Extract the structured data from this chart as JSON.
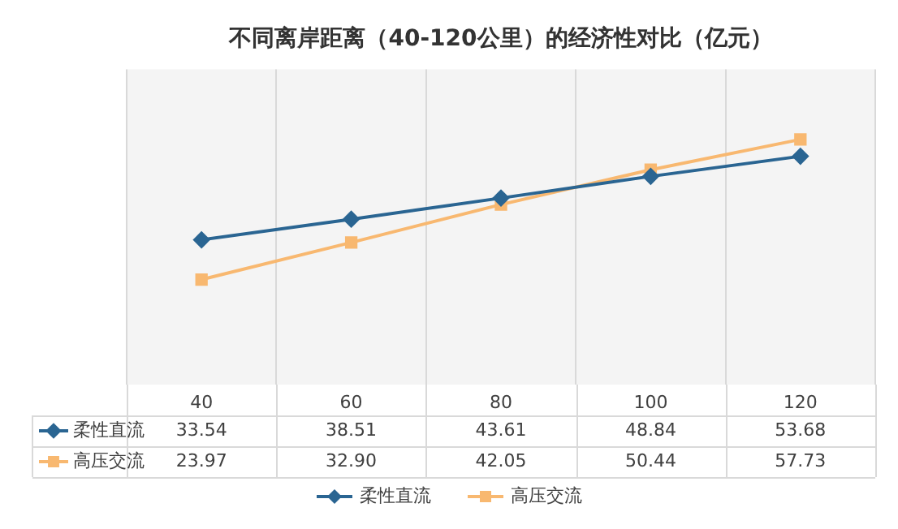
{
  "chart_data": {
    "type": "line",
    "title": "不同离岸距离（40-120公里）的经济性对比（亿元）",
    "categories": [
      "40",
      "60",
      "80",
      "100",
      "120"
    ],
    "series": [
      {
        "name": "柔性直流",
        "color": "#2a6592",
        "marker": "diamond",
        "values": [
          33.54,
          38.51,
          43.61,
          48.84,
          53.68
        ],
        "value_labels": [
          "33.54",
          "38.51",
          "43.61",
          "48.84",
          "53.68"
        ]
      },
      {
        "name": "高压交流",
        "color": "#f8b870",
        "marker": "square",
        "values": [
          23.97,
          32.9,
          42.05,
          50.44,
          57.73
        ],
        "value_labels": [
          "23.97",
          "32.90",
          "42.05",
          "50.44",
          "57.73"
        ]
      }
    ],
    "grid": "x",
    "legend": "bottom"
  }
}
